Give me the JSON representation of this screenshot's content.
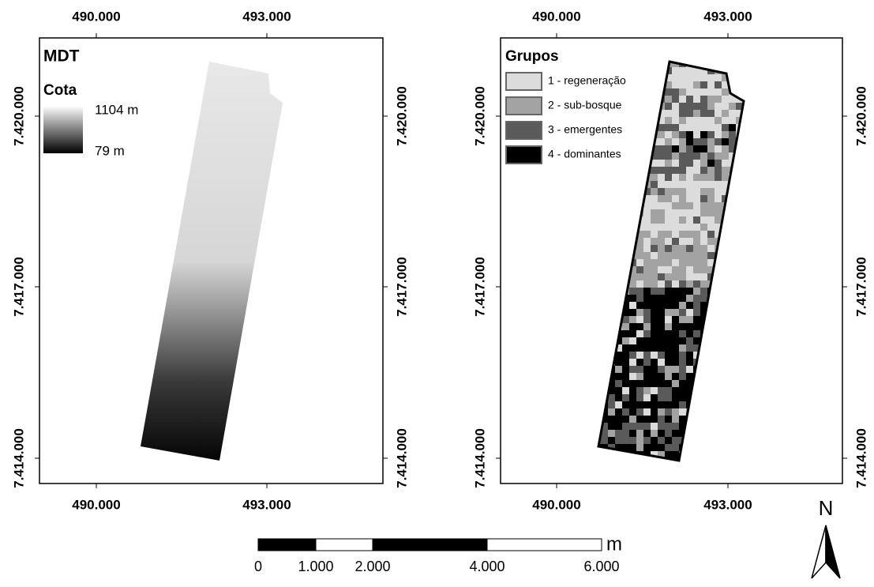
{
  "panels": [
    {
      "title": "MDT",
      "x_ticks": [
        "490.000",
        "493.000"
      ],
      "y_ticks": [
        "7.420.000",
        "7.417.000",
        "7.414.000"
      ],
      "legend": {
        "title": "Cota",
        "max": "1104 m",
        "min": "79 m"
      }
    },
    {
      "title": "Grupos",
      "x_ticks": [
        "490.000",
        "493.000"
      ],
      "y_ticks": [
        "7.420.000",
        "7.417.000",
        "7.414.000"
      ],
      "legend": {
        "items": [
          {
            "label": "1 - regeneração",
            "color": "#dcdcdc"
          },
          {
            "label": "2 - sub-bosque",
            "color": "#a3a3a3"
          },
          {
            "label": "3 - emergentes",
            "color": "#5a5a5a"
          },
          {
            "label": "4 - dominantes",
            "color": "#000000"
          }
        ]
      }
    }
  ],
  "scale_bar": {
    "labels": [
      "0",
      "1.000",
      "2.000",
      "4.000",
      "6.000"
    ],
    "unit": "m"
  },
  "north": "N"
}
